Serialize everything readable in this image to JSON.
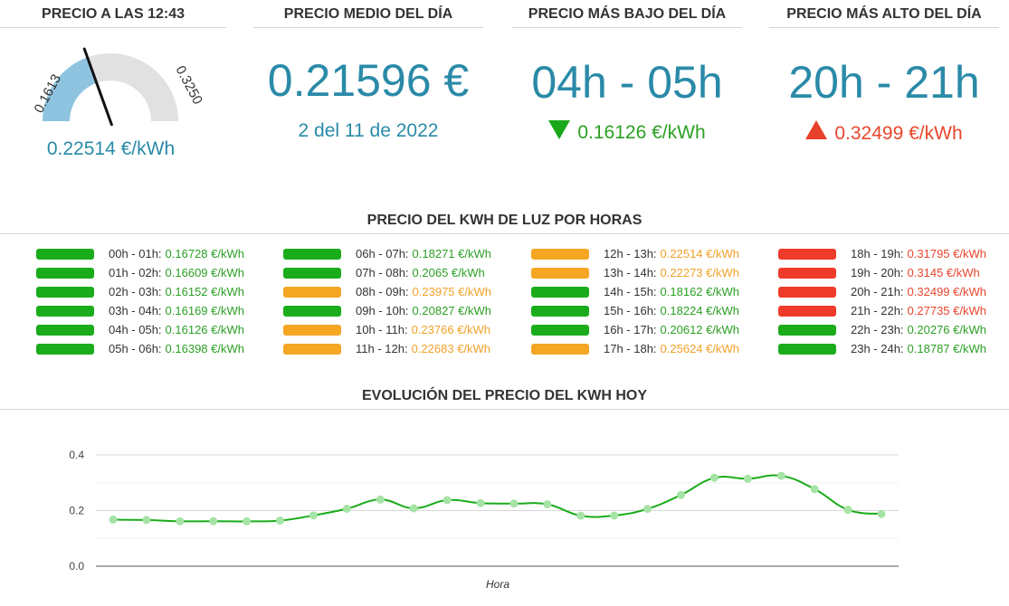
{
  "gauge": {
    "header": "PRECIO A LAS 12:43",
    "min_label": "0.1613",
    "max_label": "0.3250",
    "value": 0.22514,
    "min": 0.1613,
    "max": 0.325,
    "value_text": "0.22514 €/kWh",
    "fill_color": "#8fc4e0",
    "track_color": "#e1e1e1"
  },
  "average": {
    "header": "PRECIO MEDIO DEL DÍA",
    "value": "0.21596 €",
    "date": "2 del 11 de 2022"
  },
  "lowest": {
    "header": "PRECIO MÁS BAJO DEL DÍA",
    "range": "04h - 05h",
    "price": "0.16126 €/kWh"
  },
  "highest": {
    "header": "PRECIO MÁS ALTO DEL DÍA",
    "range": "20h - 21h",
    "price": "0.32499 €/kWh"
  },
  "colors": {
    "green": "#1aac1a",
    "orange": "#f5a623",
    "red": "#ef3b29",
    "text_green": "#2ca025",
    "text_orange": "#f2a12a",
    "text_red": "#e8462c"
  },
  "hours_section": {
    "title": "PRECIO DEL KWH DE LUZ POR HORAS",
    "items": [
      {
        "label": "00h - 01h:",
        "price": "0.16728 €/kWh",
        "level": "green"
      },
      {
        "label": "01h - 02h:",
        "price": "0.16609 €/kWh",
        "level": "green"
      },
      {
        "label": "02h - 03h:",
        "price": "0.16152 €/kWh",
        "level": "green"
      },
      {
        "label": "03h - 04h:",
        "price": "0.16169 €/kWh",
        "level": "green"
      },
      {
        "label": "04h - 05h:",
        "price": "0.16126 €/kWh",
        "level": "green"
      },
      {
        "label": "05h - 06h:",
        "price": "0.16398 €/kWh",
        "level": "green"
      },
      {
        "label": "06h - 07h:",
        "price": "0.18271 €/kWh",
        "level": "green"
      },
      {
        "label": "07h - 08h:",
        "price": "0.2065 €/kWh",
        "level": "green"
      },
      {
        "label": "08h - 09h:",
        "price": "0.23975 €/kWh",
        "level": "orange"
      },
      {
        "label": "09h - 10h:",
        "price": "0.20827 €/kWh",
        "level": "green"
      },
      {
        "label": "10h - 11h:",
        "price": "0.23766 €/kWh",
        "level": "orange"
      },
      {
        "label": "11h - 12h:",
        "price": "0.22683 €/kWh",
        "level": "orange"
      },
      {
        "label": "12h - 13h:",
        "price": "0.22514 €/kWh",
        "level": "orange"
      },
      {
        "label": "13h - 14h:",
        "price": "0.22273 €/kWh",
        "level": "orange"
      },
      {
        "label": "14h - 15h:",
        "price": "0.18162 €/kWh",
        "level": "green"
      },
      {
        "label": "15h - 16h:",
        "price": "0.18224 €/kWh",
        "level": "green"
      },
      {
        "label": "16h - 17h:",
        "price": "0.20612 €/kWh",
        "level": "green"
      },
      {
        "label": "17h - 18h:",
        "price": "0.25624 €/kWh",
        "level": "orange"
      },
      {
        "label": "18h - 19h:",
        "price": "0.31795 €/kWh",
        "level": "red"
      },
      {
        "label": "19h - 20h:",
        "price": "0.3145 €/kWh",
        "level": "red"
      },
      {
        "label": "20h - 21h:",
        "price": "0.32499 €/kWh",
        "level": "red"
      },
      {
        "label": "21h - 22h:",
        "price": "0.27735 €/kWh",
        "level": "red"
      },
      {
        "label": "22h - 23h:",
        "price": "0.20276 €/kWh",
        "level": "green"
      },
      {
        "label": "23h - 24h:",
        "price": "0.18787 €/kWh",
        "level": "green"
      }
    ]
  },
  "chart_section": {
    "title": "EVOLUCIÓN DEL PRECIO DEL KWH HOY"
  },
  "chart_data": {
    "type": "line",
    "title": "EVOLUCIÓN DEL PRECIO DEL KWH HOY",
    "xlabel": "Hora",
    "ylabel": "",
    "ylim": [
      0,
      0.4
    ],
    "yticks": [
      "0.0",
      "0.2",
      "0.4"
    ],
    "grid": true,
    "x": [
      0,
      1,
      2,
      3,
      4,
      5,
      6,
      7,
      8,
      9,
      10,
      11,
      12,
      13,
      14,
      15,
      16,
      17,
      18,
      19,
      20,
      21,
      22,
      23
    ],
    "series": [
      {
        "values": [
          0.16728,
          0.16609,
          0.16152,
          0.16169,
          0.16126,
          0.16398,
          0.18271,
          0.2065,
          0.23975,
          0.20827,
          0.23766,
          0.22683,
          0.22514,
          0.22273,
          0.18162,
          0.18224,
          0.20612,
          0.25624,
          0.31795,
          0.3145,
          0.32499,
          0.27735,
          0.20276,
          0.18787
        ],
        "color": "#1aac1a",
        "marker_color": "#a6e3a6"
      }
    ]
  }
}
